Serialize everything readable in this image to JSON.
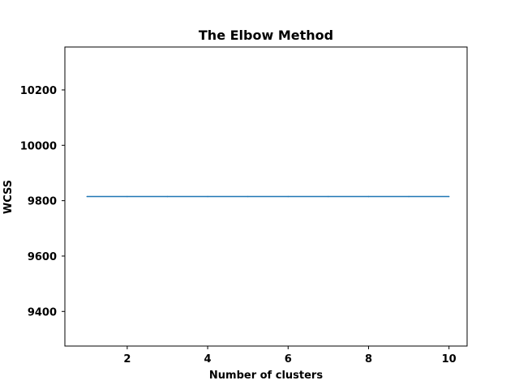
{
  "chart_data": {
    "type": "line",
    "title": "The Elbow Method",
    "xlabel": "Number of clusters",
    "ylabel": "WCSS",
    "x": [
      1,
      2,
      3,
      4,
      5,
      6,
      7,
      8,
      9,
      10
    ],
    "series": [
      {
        "values": [
          9815,
          9815,
          9815,
          9815,
          9815,
          9815,
          9815,
          9815,
          9815,
          9815
        ],
        "color": "#1f77b4"
      }
    ],
    "xlim": [
      0.45,
      10.45
    ],
    "ylim": [
      9275,
      10355
    ],
    "xticks": [
      2,
      4,
      6,
      8,
      10
    ],
    "yticks": [
      9400,
      9600,
      9800,
      10000,
      10200
    ],
    "grid": false,
    "legend": "none"
  }
}
